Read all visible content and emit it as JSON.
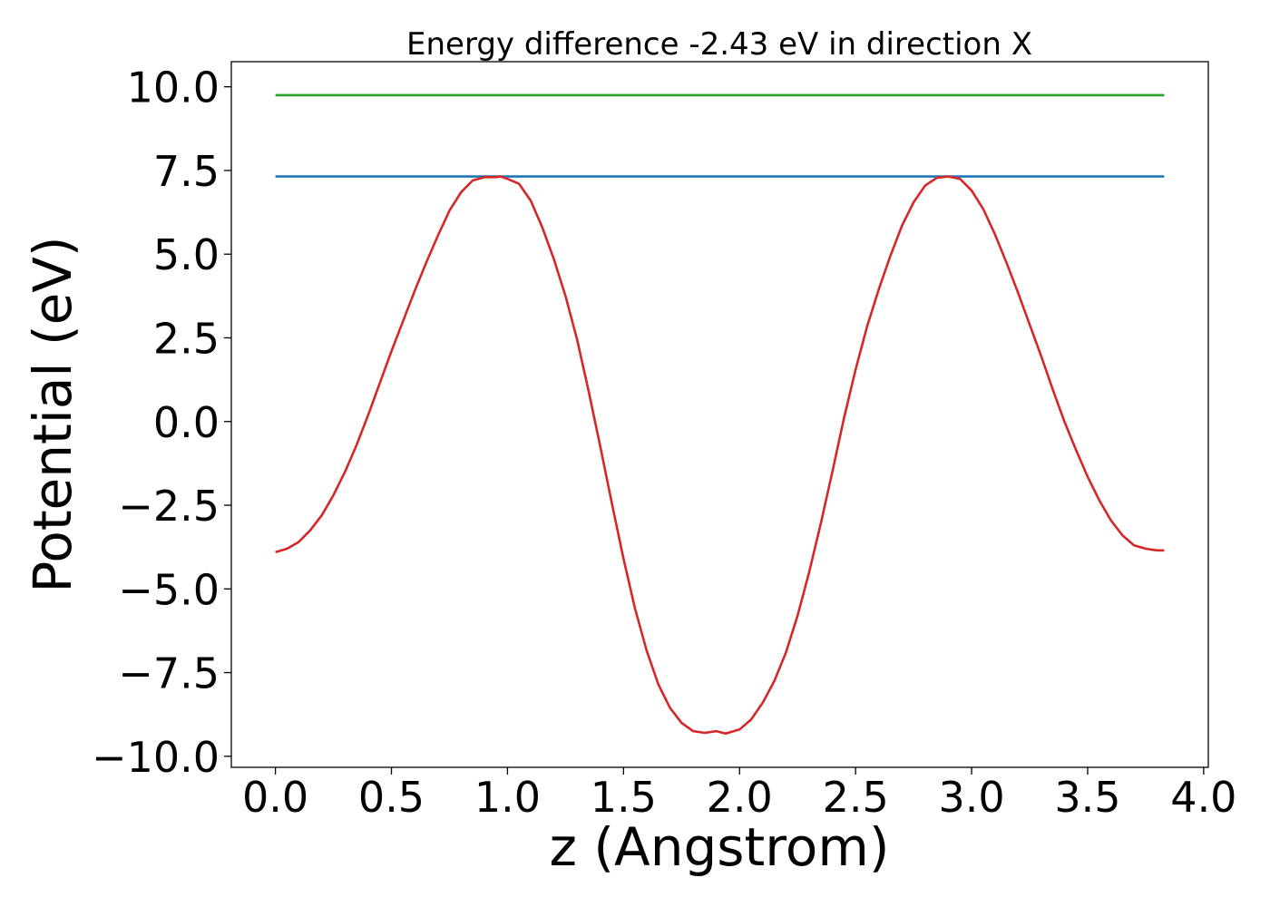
{
  "chart_data": {
    "type": "line",
    "title": "Energy difference -2.43 eV in direction X",
    "xlabel": "z (Angstrom)",
    "ylabel": "Potential (eV)",
    "xlim": [
      -0.19,
      4.02
    ],
    "ylim": [
      -10.33,
      10.75
    ],
    "xticks": [
      0.0,
      0.5,
      1.0,
      1.5,
      2.0,
      2.5,
      3.0,
      3.5,
      4.0
    ],
    "xtick_labels": [
      "0.0",
      "0.5",
      "1.0",
      "1.5",
      "2.0",
      "2.5",
      "3.0",
      "3.5",
      "4.0"
    ],
    "yticks": [
      -10.0,
      -7.5,
      -5.0,
      -2.5,
      0.0,
      2.5,
      5.0,
      7.5,
      10.0
    ],
    "ytick_labels": [
      "−10.0",
      "−7.5",
      "−5.0",
      "−2.5",
      "0.0",
      "2.5",
      "5.0",
      "7.5",
      "10.0"
    ],
    "grid": false,
    "series": [
      {
        "color": "#2ca02c",
        "x": [
          0.0,
          3.83
        ],
        "y": [
          9.75,
          9.75
        ]
      },
      {
        "color": "#1f77b4",
        "x": [
          0.0,
          3.83
        ],
        "y": [
          7.32,
          7.32
        ]
      },
      {
        "color": "#d62728",
        "x": [
          0.0,
          0.05,
          0.1,
          0.15,
          0.2,
          0.25,
          0.3,
          0.35,
          0.4,
          0.45,
          0.5,
          0.55,
          0.6,
          0.65,
          0.7,
          0.75,
          0.8,
          0.85,
          0.9,
          0.95,
          0.97,
          1.0,
          1.05,
          1.1,
          1.15,
          1.2,
          1.25,
          1.3,
          1.35,
          1.4,
          1.45,
          1.5,
          1.55,
          1.6,
          1.65,
          1.7,
          1.75,
          1.8,
          1.85,
          1.9,
          1.94,
          2.0,
          2.05,
          2.1,
          2.15,
          2.2,
          2.25,
          2.3,
          2.35,
          2.4,
          2.45,
          2.5,
          2.55,
          2.6,
          2.65,
          2.7,
          2.75,
          2.8,
          2.85,
          2.9,
          2.95,
          3.0,
          3.05,
          3.1,
          3.15,
          3.2,
          3.25,
          3.3,
          3.35,
          3.4,
          3.45,
          3.5,
          3.55,
          3.6,
          3.65,
          3.7,
          3.75,
          3.8,
          3.83
        ],
        "y": [
          -3.9,
          -3.8,
          -3.6,
          -3.25,
          -2.8,
          -2.2,
          -1.5,
          -0.7,
          0.2,
          1.15,
          2.1,
          3.0,
          3.9,
          4.75,
          5.55,
          6.3,
          6.85,
          7.2,
          7.3,
          7.3,
          7.32,
          7.25,
          7.1,
          6.6,
          5.8,
          4.85,
          3.75,
          2.45,
          0.9,
          -0.75,
          -2.45,
          -4.1,
          -5.6,
          -6.85,
          -7.85,
          -8.55,
          -9.0,
          -9.25,
          -9.3,
          -9.25,
          -9.32,
          -9.2,
          -8.9,
          -8.4,
          -7.75,
          -6.9,
          -5.8,
          -4.5,
          -3.05,
          -1.5,
          0.1,
          1.55,
          2.85,
          3.95,
          4.95,
          5.85,
          6.55,
          7.05,
          7.28,
          7.32,
          7.25,
          6.9,
          6.35,
          5.6,
          4.75,
          3.85,
          2.9,
          1.95,
          0.95,
          0.0,
          -0.85,
          -1.65,
          -2.35,
          -2.95,
          -3.4,
          -3.7,
          -3.8,
          -3.85,
          -3.85
        ]
      }
    ]
  }
}
